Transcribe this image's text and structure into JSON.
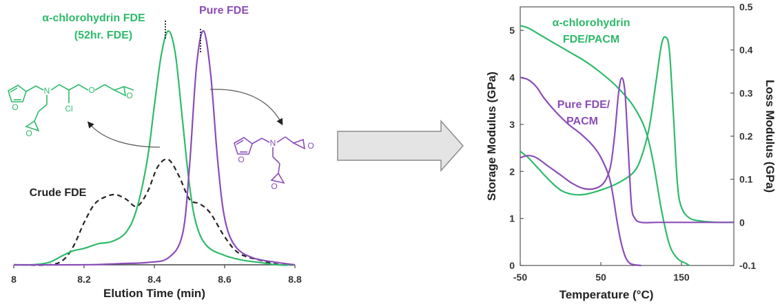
{
  "colors": {
    "green": "#2dba6a",
    "purple": "#8a4cb8",
    "crude": "#222222",
    "arrow_fill": "#e4e4e4",
    "arrow_stroke": "#8c8c8c"
  },
  "chart_data": [
    {
      "type": "line",
      "xlabel": "Elution Time (min)",
      "ylabel": "",
      "xlim": [
        8.0,
        8.8
      ],
      "x_ticks": [
        "8",
        "8.2",
        "8.4",
        "8.6",
        "8.8"
      ],
      "series": [
        {
          "name": "α-chlorohydrin FDE (52hr. FDE)",
          "color": "#2dba6a",
          "style": "solid",
          "x": [
            8.0,
            8.05,
            8.1,
            8.14,
            8.17,
            8.2,
            8.24,
            8.28,
            8.32,
            8.35,
            8.38,
            8.4,
            8.42,
            8.44,
            8.46,
            8.48,
            8.5,
            8.52,
            8.55,
            8.6,
            8.65,
            8.7,
            8.75,
            8.8
          ],
          "y": [
            0.0,
            0.0,
            0.01,
            0.04,
            0.06,
            0.07,
            0.09,
            0.1,
            0.14,
            0.24,
            0.45,
            0.68,
            0.9,
            1.0,
            0.9,
            0.62,
            0.34,
            0.17,
            0.08,
            0.04,
            0.02,
            0.01,
            0.0,
            0.0
          ]
        },
        {
          "name": "Pure FDE",
          "color": "#8a4cb8",
          "style": "solid",
          "x": [
            8.0,
            8.2,
            8.3,
            8.38,
            8.44,
            8.48,
            8.5,
            8.52,
            8.54,
            8.56,
            8.58,
            8.6,
            8.63,
            8.68,
            8.75,
            8.8
          ],
          "y": [
            0.0,
            0.0,
            0.005,
            0.01,
            0.03,
            0.13,
            0.42,
            0.85,
            1.0,
            0.82,
            0.45,
            0.2,
            0.08,
            0.03,
            0.01,
            0.0
          ],
          "exponent_note": ""
        },
        {
          "name": "Crude FDE",
          "color": "#222222",
          "style": "dashed",
          "x": [
            8.0,
            8.1,
            8.14,
            8.17,
            8.2,
            8.23,
            8.26,
            8.29,
            8.32,
            8.35,
            8.38,
            8.41,
            8.44,
            8.47,
            8.5,
            8.53,
            8.56,
            8.6,
            8.64,
            8.7,
            8.76,
            8.8
          ],
          "y": [
            0.0,
            0.0,
            0.02,
            0.08,
            0.18,
            0.26,
            0.29,
            0.3,
            0.28,
            0.25,
            0.31,
            0.42,
            0.45,
            0.38,
            0.28,
            0.26,
            0.22,
            0.12,
            0.05,
            0.02,
            0.0,
            0.0
          ]
        }
      ],
      "annotations": {
        "green_line1": "α-chlorohydrin FDE",
        "green_line2": "(52hr. FDE)",
        "purple": "Pure FDE",
        "crude": "Crude FDE",
        "chloro_atom": "Cl"
      }
    },
    {
      "type": "line",
      "xlabel": "Temperature (°C)",
      "ylabel": "Storage Modulus (GPa)",
      "y2label": "Loss Modulus (GPa)",
      "xlim": [
        -50,
        215
      ],
      "ylim": [
        0,
        5.5
      ],
      "y2lim": [
        -0.1,
        0.5
      ],
      "x_ticks": [
        "-50",
        "50",
        "150"
      ],
      "y_ticks": [
        "0",
        "1",
        "2",
        "3",
        "4",
        "5"
      ],
      "y2_ticks": [
        "-0.1",
        "0",
        "0.1",
        "0.2",
        "0.3",
        "0.4",
        "0.5"
      ],
      "series": [
        {
          "name": "α-chlorohydrin FDE/PACM storage",
          "color": "#2dba6a",
          "axis": "left",
          "x": [
            -50,
            -40,
            -25,
            -10,
            10,
            30,
            50,
            70,
            90,
            105,
            115,
            125,
            135,
            145,
            155,
            160
          ],
          "y": [
            5.1,
            5.05,
            4.9,
            4.75,
            4.55,
            4.35,
            4.1,
            3.8,
            3.4,
            2.9,
            2.2,
            1.2,
            0.45,
            0.15,
            0.05,
            0.0
          ]
        },
        {
          "name": "α-chlorohydrin FDE/PACM loss",
          "color": "#2dba6a",
          "axis": "right",
          "x": [
            -50,
            -40,
            -30,
            -15,
            0,
            15,
            30,
            50,
            70,
            90,
            100,
            110,
            118,
            125,
            130,
            135,
            140,
            145,
            150,
            160,
            175,
            195,
            215
          ],
          "y": [
            0.165,
            0.15,
            0.13,
            0.1,
            0.075,
            0.065,
            0.065,
            0.075,
            0.09,
            0.115,
            0.15,
            0.22,
            0.32,
            0.41,
            0.43,
            0.4,
            0.25,
            0.09,
            0.035,
            0.01,
            0.003,
            0.0,
            0.0
          ]
        },
        {
          "name": "Pure FDE/PACM storage",
          "color": "#8a4cb8",
          "axis": "left",
          "x": [
            -50,
            -40,
            -30,
            -20,
            -5,
            10,
            25,
            40,
            50,
            60,
            65,
            70,
            75,
            80,
            85,
            90,
            100
          ],
          "y": [
            4.0,
            3.95,
            3.8,
            3.55,
            3.25,
            3.0,
            2.8,
            2.55,
            2.3,
            1.9,
            1.5,
            0.95,
            0.5,
            0.2,
            0.06,
            0.02,
            0.0
          ]
        },
        {
          "name": "Pure FDE/PACM loss",
          "color": "#8a4cb8",
          "axis": "right",
          "x": [
            -50,
            -40,
            -30,
            -15,
            0,
            15,
            30,
            45,
            55,
            62,
            67,
            72,
            76,
            80,
            84,
            88,
            92,
            100,
            120,
            160,
            215
          ],
          "y": [
            0.15,
            0.155,
            0.15,
            0.13,
            0.11,
            0.09,
            0.078,
            0.08,
            0.095,
            0.13,
            0.2,
            0.3,
            0.335,
            0.3,
            0.17,
            0.04,
            0.01,
            0.0,
            0.0,
            0.0,
            0.0
          ]
        }
      ],
      "annotations": {
        "green_line1": "α-chlorohydrin",
        "green_line2": "FDE/PACM",
        "purple_line1": "Pure FDE/",
        "purple_line2": "PACM"
      }
    }
  ]
}
